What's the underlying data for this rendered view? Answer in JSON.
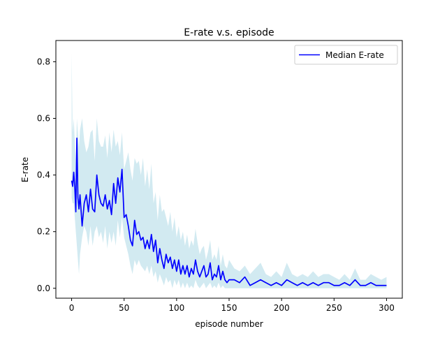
{
  "chart_data": {
    "type": "line",
    "title": "E-rate v.s. episode",
    "xlabel": "episode number",
    "ylabel": "E-rate",
    "xlim": [
      -15,
      315
    ],
    "ylim": [
      -0.035,
      0.875
    ],
    "xticks": [
      0,
      50,
      100,
      150,
      200,
      250,
      300
    ],
    "yticks": [
      0.0,
      0.2,
      0.4,
      0.6,
      0.8
    ],
    "xtick_labels": [
      "0",
      "50",
      "100",
      "150",
      "200",
      "250",
      "300"
    ],
    "ytick_labels": [
      "0.0",
      "0.2",
      "0.4",
      "0.6",
      "0.8"
    ],
    "grid": false,
    "legend_position": "top-right",
    "series": [
      {
        "name": "Median E-rate",
        "color": "#0000ff",
        "x": [
          0,
          1,
          2,
          3,
          4,
          5,
          6,
          7,
          8,
          10,
          12,
          14,
          16,
          18,
          20,
          22,
          24,
          26,
          28,
          30,
          32,
          34,
          36,
          38,
          40,
          42,
          44,
          46,
          48,
          50,
          52,
          54,
          56,
          58,
          60,
          62,
          64,
          66,
          68,
          70,
          72,
          74,
          76,
          78,
          80,
          82,
          84,
          86,
          88,
          90,
          92,
          94,
          96,
          98,
          100,
          102,
          104,
          106,
          108,
          110,
          112,
          114,
          116,
          118,
          120,
          122,
          124,
          126,
          128,
          130,
          132,
          134,
          136,
          138,
          140,
          142,
          144,
          146,
          148,
          150,
          155,
          160,
          165,
          170,
          175,
          180,
          185,
          190,
          195,
          200,
          205,
          210,
          215,
          220,
          225,
          230,
          235,
          240,
          245,
          250,
          255,
          260,
          265,
          270,
          275,
          280,
          285,
          290,
          295,
          300
        ],
        "y": [
          0.38,
          0.36,
          0.41,
          0.36,
          0.27,
          0.53,
          0.32,
          0.28,
          0.33,
          0.22,
          0.3,
          0.33,
          0.27,
          0.35,
          0.28,
          0.27,
          0.4,
          0.33,
          0.3,
          0.29,
          0.33,
          0.28,
          0.31,
          0.26,
          0.37,
          0.3,
          0.39,
          0.34,
          0.42,
          0.25,
          0.26,
          0.22,
          0.17,
          0.15,
          0.24,
          0.19,
          0.2,
          0.17,
          0.18,
          0.14,
          0.17,
          0.14,
          0.19,
          0.13,
          0.17,
          0.09,
          0.14,
          0.1,
          0.07,
          0.12,
          0.09,
          0.11,
          0.07,
          0.1,
          0.06,
          0.1,
          0.05,
          0.08,
          0.05,
          0.08,
          0.04,
          0.07,
          0.05,
          0.1,
          0.06,
          0.04,
          0.06,
          0.08,
          0.04,
          0.05,
          0.09,
          0.03,
          0.05,
          0.04,
          0.08,
          0.03,
          0.06,
          0.03,
          0.02,
          0.03,
          0.03,
          0.02,
          0.04,
          0.01,
          0.02,
          0.03,
          0.02,
          0.01,
          0.02,
          0.01,
          0.03,
          0.02,
          0.01,
          0.02,
          0.01,
          0.02,
          0.01,
          0.02,
          0.02,
          0.01,
          0.01,
          0.02,
          0.01,
          0.03,
          0.01,
          0.01,
          0.02,
          0.01,
          0.01,
          0.01
        ]
      }
    ],
    "band": {
      "color": "#add8e6",
      "opacity": 0.55,
      "x": [
        0,
        1,
        2,
        3,
        4,
        5,
        6,
        7,
        8,
        10,
        12,
        14,
        16,
        18,
        20,
        22,
        24,
        26,
        28,
        30,
        32,
        34,
        36,
        38,
        40,
        42,
        44,
        46,
        48,
        50,
        52,
        54,
        56,
        58,
        60,
        62,
        64,
        66,
        68,
        70,
        72,
        74,
        76,
        78,
        80,
        82,
        84,
        86,
        88,
        90,
        92,
        94,
        96,
        98,
        100,
        102,
        104,
        106,
        108,
        110,
        112,
        114,
        116,
        118,
        120,
        122,
        124,
        126,
        128,
        130,
        132,
        134,
        136,
        138,
        140,
        142,
        144,
        146,
        148,
        150,
        155,
        160,
        165,
        170,
        175,
        180,
        185,
        190,
        195,
        200,
        205,
        210,
        215,
        220,
        225,
        230,
        235,
        240,
        245,
        250,
        255,
        260,
        265,
        270,
        275,
        280,
        285,
        290,
        295,
        300
      ],
      "upper": [
        0.83,
        0.55,
        0.6,
        0.52,
        0.45,
        0.6,
        0.55,
        0.5,
        0.56,
        0.6,
        0.52,
        0.48,
        0.5,
        0.55,
        0.56,
        0.45,
        0.6,
        0.52,
        0.5,
        0.5,
        0.54,
        0.46,
        0.55,
        0.48,
        0.56,
        0.5,
        0.52,
        0.47,
        0.55,
        0.42,
        0.45,
        0.48,
        0.42,
        0.38,
        0.46,
        0.44,
        0.45,
        0.4,
        0.46,
        0.36,
        0.42,
        0.35,
        0.44,
        0.3,
        0.34,
        0.24,
        0.33,
        0.27,
        0.28,
        0.25,
        0.22,
        0.27,
        0.2,
        0.25,
        0.18,
        0.22,
        0.17,
        0.2,
        0.15,
        0.19,
        0.14,
        0.17,
        0.15,
        0.21,
        0.16,
        0.12,
        0.14,
        0.15,
        0.1,
        0.13,
        0.17,
        0.1,
        0.12,
        0.1,
        0.15,
        0.08,
        0.12,
        0.08,
        0.07,
        0.1,
        0.07,
        0.06,
        0.08,
        0.05,
        0.07,
        0.09,
        0.05,
        0.04,
        0.06,
        0.04,
        0.09,
        0.05,
        0.04,
        0.05,
        0.04,
        0.06,
        0.04,
        0.05,
        0.05,
        0.04,
        0.03,
        0.05,
        0.03,
        0.07,
        0.03,
        0.03,
        0.05,
        0.04,
        0.03,
        0.04
      ],
      "lower": [
        0.32,
        0.3,
        0.3,
        0.25,
        0.2,
        0.15,
        0.1,
        0.05,
        0.12,
        0.18,
        0.22,
        0.2,
        0.15,
        0.22,
        0.15,
        0.2,
        0.22,
        0.18,
        0.2,
        0.16,
        0.22,
        0.14,
        0.2,
        0.16,
        0.2,
        0.15,
        0.24,
        0.18,
        0.25,
        0.18,
        0.15,
        0.12,
        0.08,
        0.05,
        0.1,
        0.08,
        0.1,
        0.08,
        0.07,
        0.06,
        0.08,
        0.05,
        0.08,
        0.04,
        0.06,
        0.02,
        0.05,
        0.03,
        0.01,
        0.04,
        0.02,
        0.03,
        0.0,
        0.03,
        0.01,
        0.03,
        0.0,
        0.02,
        0.0,
        0.02,
        0.0,
        0.01,
        0.0,
        0.03,
        0.01,
        0.0,
        0.01,
        0.02,
        0.0,
        0.01,
        0.02,
        0.0,
        0.01,
        0.0,
        0.02,
        0.0,
        0.01,
        0.0,
        0.0,
        0.0,
        0.0,
        0.0,
        0.0,
        0.0,
        0.0,
        0.0,
        0.0,
        0.0,
        0.0,
        0.0,
        0.0,
        0.0,
        0.0,
        0.0,
        0.0,
        0.0,
        0.0,
        0.0,
        0.0,
        0.0,
        0.0,
        0.0,
        0.0,
        0.0,
        0.0,
        0.0,
        0.0,
        0.0,
        0.0,
        0.0
      ]
    }
  }
}
